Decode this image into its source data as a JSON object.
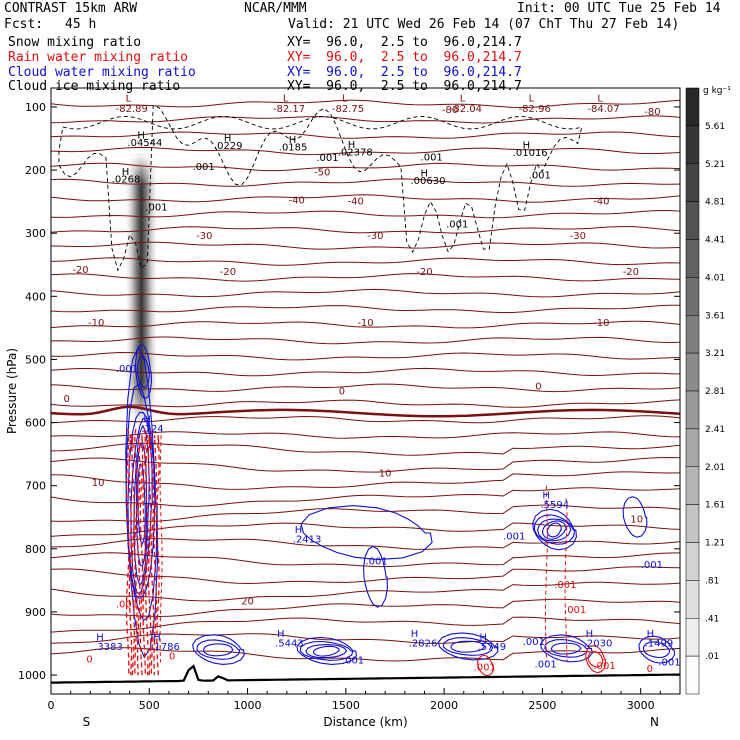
{
  "header": {
    "model": "CONTRAST 15km ARW",
    "center": "NCAR/MMM",
    "init": "Init: 00 UTC Tue 25 Feb 14",
    "fcst_label": "Fcst:",
    "fcst_value": "45 h",
    "valid": "Valid: 21 UTC Wed 26 Feb 14 (07 ChT Thu 27 Feb 14)"
  },
  "fields": [
    {
      "name": "Snow mixing ratio",
      "xy": "XY=  96.0,  2.5 to  96.0,214.7",
      "color": "#000000"
    },
    {
      "name": "Rain water mixing ratio",
      "xy": "XY=  96.0,  2.5 to  96.0,214.7",
      "color": "#e01010"
    },
    {
      "name": "Cloud water mixing ratio",
      "xy": "XY=  96.0,  2.5 to  96.0,214.7",
      "color": "#1010d0"
    },
    {
      "name": "Cloud ice mixing ratio",
      "xy": "XY=  96.0,  2.5 to  96.0,214.7",
      "color": "#000000"
    }
  ],
  "chart_data": {
    "type": "cross-section contour",
    "xlabel": "Distance (km)",
    "ylabel": "Pressure (hPa)",
    "xlim": [
      0,
      3200
    ],
    "ylim": [
      1030,
      70
    ],
    "x_ticks": [
      0,
      500,
      1000,
      1500,
      2000,
      2500,
      3000
    ],
    "y_ticks": [
      100,
      200,
      300,
      400,
      500,
      600,
      700,
      800,
      900,
      1000
    ],
    "x_end_labels": {
      "left": "S",
      "right": "N"
    },
    "colorbar": {
      "unit": "g kg⁻¹",
      "labels": [
        "5.61",
        "5.21",
        "4.81",
        "4.41",
        "4.01",
        "3.61",
        "3.21",
        "2.81",
        "2.41",
        "2.01",
        "1.61",
        "1.21",
        ".81",
        ".41",
        ".01"
      ]
    },
    "temperature_contour_labels_degC": [
      -80,
      -50,
      -40,
      -30,
      -20,
      -10,
      0,
      10,
      20
    ],
    "temperature_lows": [
      "-82.89",
      "-82.17",
      "-82.75",
      "-82.04",
      "-82.96",
      "-84.07"
    ],
    "ice_highs": [
      ".04544",
      ".0229",
      ".0185",
      ".02378",
      ".01016",
      ".0268",
      ".00630"
    ],
    "ice_labels": [
      ".001"
    ],
    "cloud_water_highs": [
      ".724",
      ".5594",
      ".2413",
      ".3383",
      ".1786",
      ".5443",
      ".2826",
      ".5749",
      ".2030",
      ".1499"
    ],
    "rain_labels": [
      ".001"
    ],
    "colors": {
      "temperature": "#7a1010",
      "rain": "#e01010",
      "cloud_water": "#1010d0",
      "ice": "#000000",
      "snow": "#000000"
    }
  }
}
